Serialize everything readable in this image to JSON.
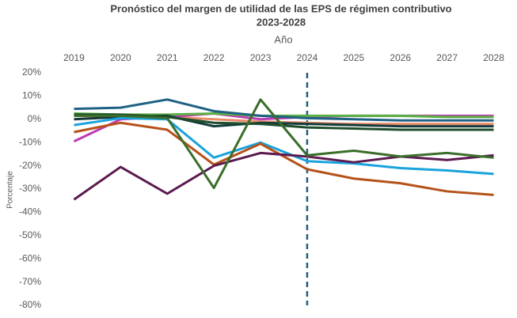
{
  "chart_data": {
    "type": "line",
    "title": "Pronóstico del margen de utilidad de las EPS de régimen contributivo",
    "subtitle": "2023-2028",
    "x_label": "Año",
    "y_label": "Porcentaje",
    "categories": [
      "2019",
      "2020",
      "2021",
      "2022",
      "2023",
      "2024",
      "2025",
      "2026",
      "2027",
      "2028"
    ],
    "forecast_start": "2024",
    "ylim": [
      -80,
      20
    ],
    "yticks": [
      {
        "value": 20,
        "label": "20%"
      },
      {
        "value": 10,
        "label": "10%"
      },
      {
        "value": 0,
        "label": "0%"
      },
      {
        "value": -10,
        "label": "-10%"
      },
      {
        "value": -20,
        "label": "-20%"
      },
      {
        "value": -30,
        "label": "-30%"
      },
      {
        "value": -40,
        "label": "-40%"
      },
      {
        "value": -50,
        "label": "-50%"
      },
      {
        "value": -60,
        "label": "-60%"
      },
      {
        "value": -70,
        "label": "-70%"
      },
      {
        "value": -80,
        "label": "-80%"
      }
    ],
    "grid": false,
    "series": [
      {
        "color": "#e88d6b",
        "values": [
          1.5,
          1,
          1,
          0,
          -1,
          -1.5,
          -2,
          -2,
          -2,
          -2
        ]
      },
      {
        "color": "#c03cb4",
        "values": [
          -9.5,
          0,
          1,
          2.5,
          0,
          1,
          1.5,
          1.5,
          1.5,
          1.5
        ]
      },
      {
        "color": "#5ab045",
        "values": [
          2.5,
          2,
          2,
          2.5,
          1.5,
          1.5,
          1.5,
          1.5,
          1,
          1
        ]
      },
      {
        "color": "#1f6184",
        "values": [
          4.5,
          5,
          8.5,
          3.5,
          1.5,
          0.5,
          0,
          -0.5,
          -0.5,
          -0.5
        ]
      },
      {
        "color": "#123a3a",
        "values": [
          0,
          1,
          1.5,
          -3,
          -1.5,
          -2,
          -2.5,
          -3,
          -3,
          -3
        ]
      },
      {
        "color": "#1e4d2b",
        "values": [
          2,
          2,
          1,
          -1.5,
          -2,
          -3.5,
          -4,
          -4.5,
          -4.5,
          -4.5
        ]
      },
      {
        "color": "#1aa3dc",
        "values": [
          -2.5,
          0.5,
          0,
          -16.5,
          -10,
          -18,
          -19,
          -21,
          -22,
          -23.5
        ]
      },
      {
        "color": "#b5521a",
        "values": [
          -5.5,
          -1.5,
          -4.5,
          -19.5,
          -10.5,
          -21.5,
          -25.5,
          -27.5,
          -31,
          -32.5
        ]
      },
      {
        "color": "#5c1a4e",
        "values": [
          -34.5,
          -20.5,
          -32,
          -20,
          -14.5,
          -16,
          -18.5,
          -16,
          -17.5,
          -15.5
        ]
      },
      {
        "color": "#3a6e2a",
        "values": [
          1.5,
          1.5,
          0.5,
          -29.5,
          8.5,
          -15.5,
          -13.5,
          -16,
          -14.5,
          -16.5
        ]
      }
    ]
  }
}
